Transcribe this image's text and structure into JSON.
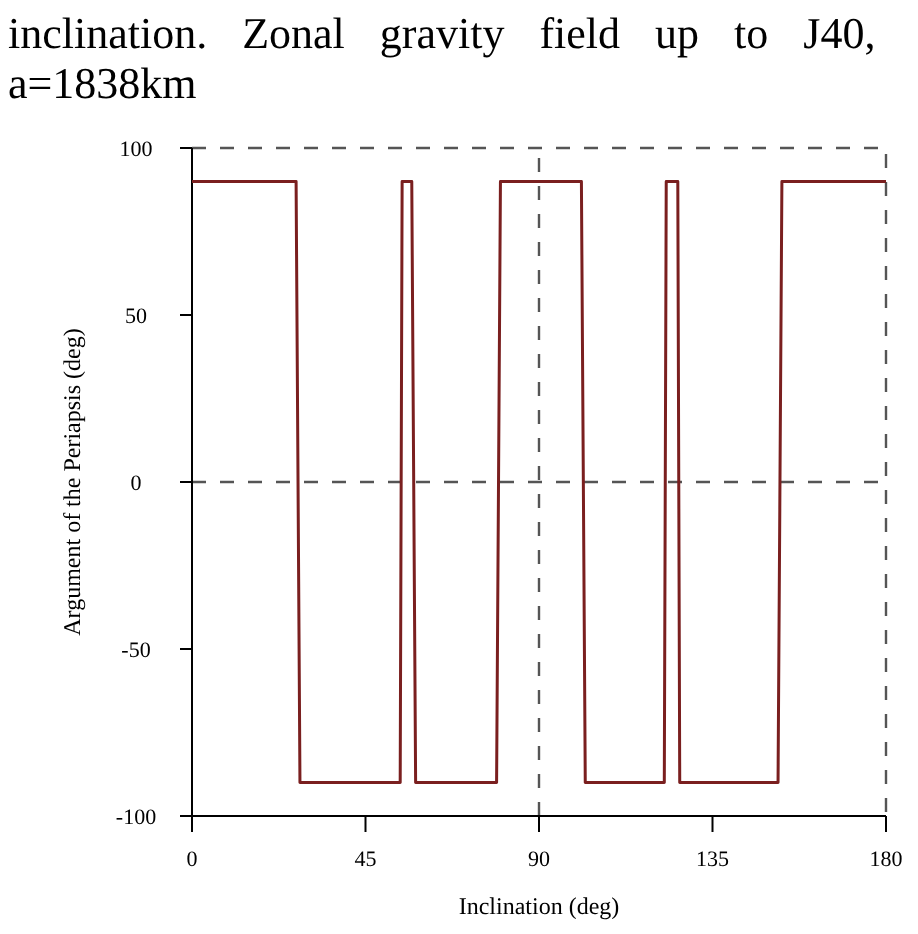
{
  "chart_data": {
    "type": "line",
    "title": "inclination. Zonal gravity field up to J40, a=1838km",
    "xlabel": "Inclination (deg)",
    "ylabel": "Argument of the Periapsis (deg)",
    "series": [
      {
        "color": "#7a1f1f",
        "x": [
          0,
          27,
          28,
          54,
          54.5,
          57,
          58,
          79,
          80,
          101,
          102,
          122.5,
          123,
          126,
          126.5,
          152,
          153,
          180
        ],
        "values": [
          90,
          90,
          -90,
          -90,
          90,
          90,
          -90,
          -90,
          90,
          90,
          -90,
          -90,
          90,
          90,
          -90,
          -90,
          90,
          90
        ]
      }
    ],
    "xlim": [
      0,
      180
    ],
    "xticks": [
      0,
      45,
      90,
      135,
      180
    ],
    "ylim": [
      -100,
      100
    ],
    "yticks": [
      -100,
      -50,
      0,
      50,
      100
    ],
    "ref_lines": [
      {
        "axis": "y",
        "value": 0,
        "line_style": "dashed"
      },
      {
        "axis": "x",
        "value": 90,
        "line_style": "dashed"
      }
    ],
    "grid": false,
    "marker": "none",
    "line_style": "solid"
  }
}
